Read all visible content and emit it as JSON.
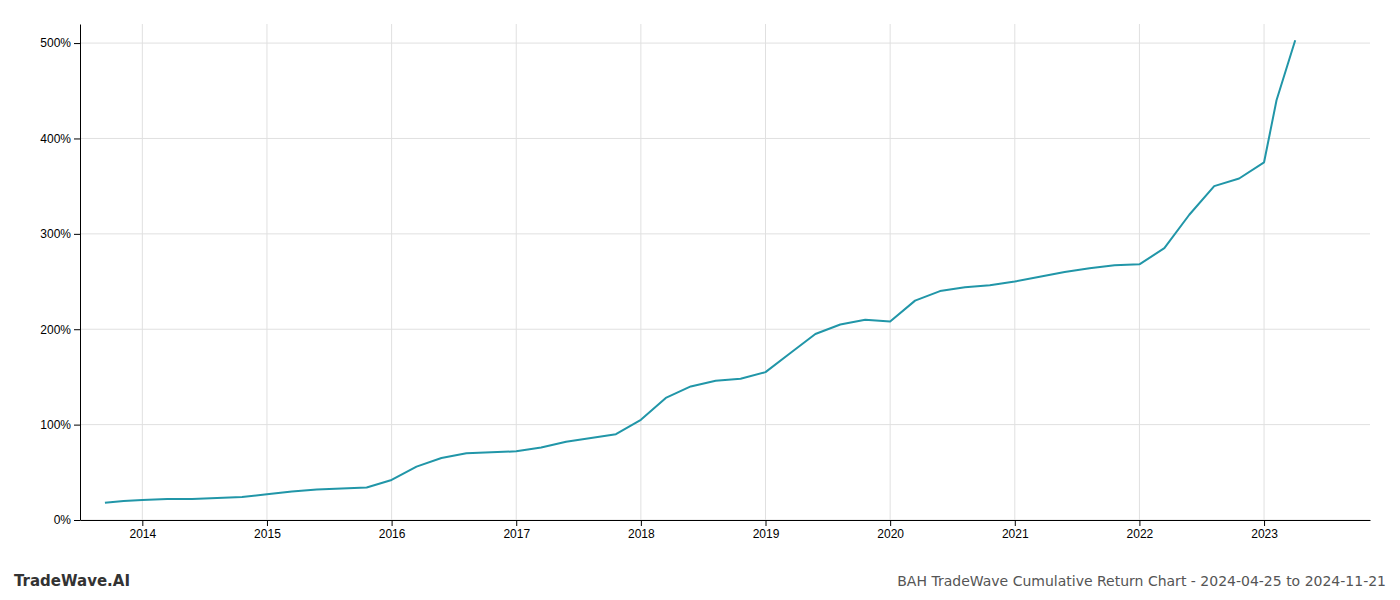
{
  "chart_data": {
    "type": "line",
    "title": "BAH TradeWave Cumulative Return Chart - 2024-04-25 to 2024-11-21",
    "annotations": [
      "TradeWave.AI"
    ],
    "color": "#2196a8",
    "x": [
      2013.7,
      2013.85,
      2014.0,
      2014.2,
      2014.4,
      2014.6,
      2014.8,
      2015.0,
      2015.2,
      2015.4,
      2015.6,
      2015.8,
      2016.0,
      2016.2,
      2016.4,
      2016.6,
      2016.8,
      2017.0,
      2017.2,
      2017.4,
      2017.6,
      2017.8,
      2018.0,
      2018.2,
      2018.4,
      2018.6,
      2018.8,
      2019.0,
      2019.2,
      2019.4,
      2019.6,
      2019.8,
      2020.0,
      2020.2,
      2020.4,
      2020.6,
      2020.8,
      2021.0,
      2021.2,
      2021.4,
      2021.6,
      2021.8,
      2022.0,
      2022.2,
      2022.4,
      2022.6,
      2022.8,
      2023.0,
      2023.1,
      2023.25
    ],
    "values": [
      18,
      20,
      21,
      22,
      22,
      23,
      24,
      27,
      30,
      32,
      33,
      34,
      42,
      56,
      65,
      70,
      71,
      72,
      76,
      82,
      86,
      90,
      105,
      128,
      140,
      146,
      148,
      155,
      175,
      195,
      205,
      210,
      208,
      230,
      240,
      244,
      246,
      250,
      255,
      260,
      264,
      267,
      268,
      285,
      320,
      350,
      358,
      375,
      440,
      503
    ],
    "xlim": [
      2013.5,
      2023.85
    ],
    "ylim": [
      0,
      520
    ],
    "xticks": [
      2014,
      2015,
      2016,
      2017,
      2018,
      2019,
      2020,
      2021,
      2022,
      2023
    ],
    "yticks": [
      {
        "value": 0,
        "label": "0%"
      },
      {
        "value": 100,
        "label": "100%"
      },
      {
        "value": 200,
        "label": "200%"
      },
      {
        "value": 300,
        "label": "300%"
      },
      {
        "value": 400,
        "label": "400%"
      },
      {
        "value": 500,
        "label": "500%"
      }
    ],
    "grid": true
  }
}
